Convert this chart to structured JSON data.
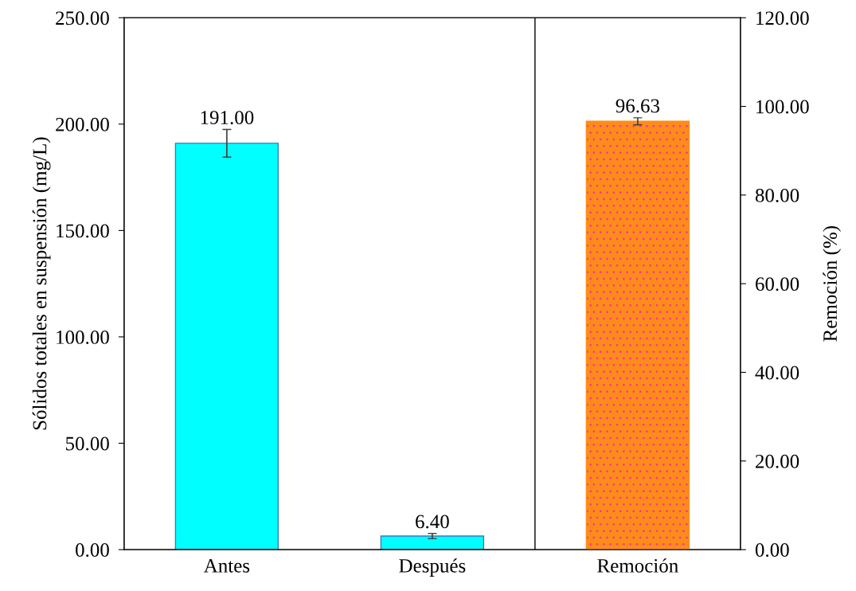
{
  "chart_data": {
    "type": "bar",
    "categories": [
      "Antes",
      "Después",
      "Remoción"
    ],
    "ylabel": "Sólidos totales en suspensión (mg/L)",
    "y2label": "Remoción (%)",
    "series": [
      {
        "color": "#00ffff",
        "values": [
          191.0,
          6.4,
          null
        ],
        "errors": [
          6.5,
          1.2,
          null
        ],
        "value_labels": [
          "191.00",
          "6.40",
          null
        ]
      },
      {
        "color": "#ff8c1a",
        "values": [
          null,
          null,
          96.63
        ],
        "errors": [
          null,
          null,
          0.8
        ],
        "axis": "y2",
        "value_labels": [
          null,
          null,
          "96.63"
        ]
      }
    ],
    "ylim": [
      0,
      250
    ],
    "yticks": [
      {
        "value": 0,
        "label": "0.00"
      },
      {
        "value": 50,
        "label": "50.00"
      },
      {
        "value": 100,
        "label": "100.00"
      },
      {
        "value": 150,
        "label": "150.00"
      },
      {
        "value": 200,
        "label": "200.00"
      },
      {
        "value": 250,
        "label": "250.00"
      }
    ],
    "y2lim": [
      0,
      120
    ],
    "y2ticks": [
      {
        "value": 0,
        "label": "0.00"
      },
      {
        "value": 20,
        "label": "20.00"
      },
      {
        "value": 40,
        "label": "40.00"
      },
      {
        "value": 60,
        "label": "60.00"
      },
      {
        "value": 80,
        "label": "80.00"
      },
      {
        "value": 100,
        "label": "100.00"
      },
      {
        "value": 120,
        "label": "120.00"
      }
    ],
    "grid": false,
    "legend": false
  }
}
